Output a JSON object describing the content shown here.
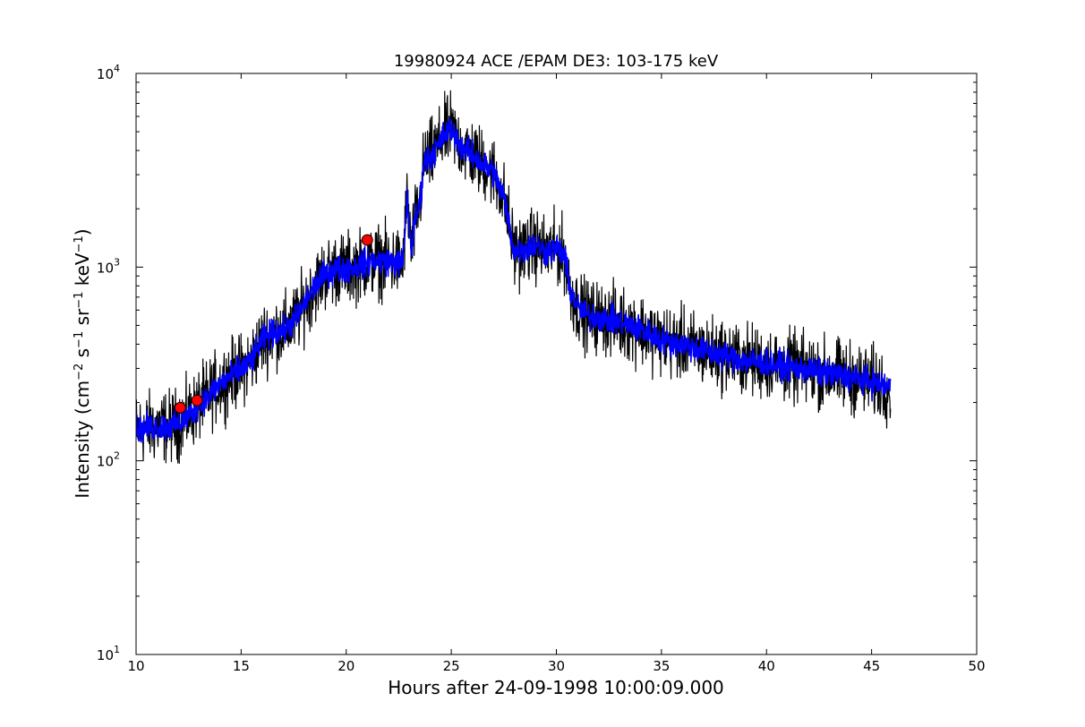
{
  "chart_data": {
    "type": "line",
    "title": "19980924 ACE /EPAM DE3: 103-175 keV",
    "xlabel": "Hours after 24-09-1998 10:00:09.000",
    "ylabel": "Intensity (cm^-2 s^-1 sr^-1 keV^-1)",
    "xlim": [
      10,
      50
    ],
    "ylim": [
      10,
      10000
    ],
    "yscale": "log",
    "grid": false,
    "x_ticks": [
      10,
      15,
      20,
      25,
      30,
      35,
      40,
      45,
      50
    ],
    "x_tick_labels": [
      "10",
      "15",
      "20",
      "25",
      "30",
      "35",
      "40",
      "45",
      "50"
    ],
    "y_ticks": [
      {
        "value": 10,
        "base": "10",
        "exp": "1"
      },
      {
        "value": 100,
        "base": "10",
        "exp": "2"
      },
      {
        "value": 1000,
        "base": "10",
        "exp": "3"
      },
      {
        "value": 10000,
        "base": "10",
        "exp": "4"
      }
    ],
    "series": [
      {
        "role": "raw",
        "color": "#000000",
        "noise_dex": 0.09,
        "x": [
          10,
          10.5,
          11,
          11.5,
          12,
          12.5,
          13,
          13.5,
          14,
          14.5,
          15,
          15.5,
          16,
          16.5,
          17,
          17.5,
          18,
          18.5,
          19,
          19.5,
          20,
          20.5,
          21,
          21.5,
          22,
          22.5,
          22.7,
          22.9,
          23.1,
          23.3,
          23.5,
          23.7,
          24,
          24.3,
          24.6,
          25,
          25.3,
          25.6,
          26,
          26.5,
          27,
          27.5,
          28,
          28.5,
          29,
          29.5,
          30,
          30.4,
          30.6,
          31,
          31.5,
          32,
          33,
          34,
          35,
          36,
          37,
          38,
          39,
          40,
          41,
          42,
          43,
          44,
          45,
          45.9
        ],
        "y": [
          145,
          148,
          150,
          150,
          155,
          170,
          195,
          220,
          250,
          275,
          295,
          330,
          420,
          460,
          470,
          520,
          640,
          800,
          920,
          980,
          980,
          1010,
          1060,
          1080,
          1070,
          1050,
          1050,
          2300,
          1200,
          1800,
          2100,
          3500,
          3700,
          4100,
          4700,
          5200,
          4500,
          4100,
          3800,
          3400,
          3100,
          2300,
          1200,
          1250,
          1300,
          1200,
          1250,
          1150,
          800,
          620,
          560,
          550,
          520,
          480,
          420,
          400,
          370,
          350,
          330,
          320,
          305,
          295,
          280,
          270,
          255,
          240
        ]
      },
      {
        "role": "smoothed",
        "color": "#0000ff",
        "noise_dex": 0.035,
        "x": [
          10,
          10.5,
          11,
          11.5,
          12,
          12.5,
          13,
          13.5,
          14,
          14.5,
          15,
          15.5,
          16,
          16.5,
          17,
          17.5,
          18,
          18.5,
          19,
          19.5,
          20,
          20.5,
          21,
          21.5,
          22,
          22.5,
          22.7,
          22.9,
          23.1,
          23.3,
          23.5,
          23.7,
          24,
          24.3,
          24.6,
          25,
          25.3,
          25.6,
          26,
          26.5,
          27,
          27.5,
          28,
          28.5,
          29,
          29.5,
          30,
          30.4,
          30.6,
          31,
          31.5,
          32,
          33,
          34,
          35,
          36,
          37,
          38,
          39,
          40,
          41,
          42,
          43,
          44,
          45,
          45.9
        ],
        "y": [
          145,
          148,
          150,
          150,
          155,
          170,
          195,
          220,
          250,
          275,
          295,
          330,
          420,
          460,
          470,
          520,
          640,
          800,
          920,
          980,
          980,
          1010,
          1060,
          1080,
          1070,
          1050,
          1050,
          2300,
          1200,
          1800,
          2100,
          3500,
          3700,
          4100,
          4700,
          5200,
          4500,
          4100,
          3800,
          3400,
          3100,
          2300,
          1200,
          1250,
          1300,
          1200,
          1250,
          1150,
          800,
          620,
          560,
          550,
          520,
          480,
          420,
          400,
          370,
          350,
          330,
          320,
          305,
          295,
          280,
          270,
          255,
          240
        ]
      }
    ],
    "markers": [
      {
        "x": 12.1,
        "y": 188,
        "color": "#ff0000",
        "shape": "circle"
      },
      {
        "x": 12.9,
        "y": 205,
        "color": "#ff0000",
        "shape": "circle"
      },
      {
        "x": 21.0,
        "y": 1380,
        "color": "#ff0000",
        "shape": "circle"
      }
    ]
  }
}
